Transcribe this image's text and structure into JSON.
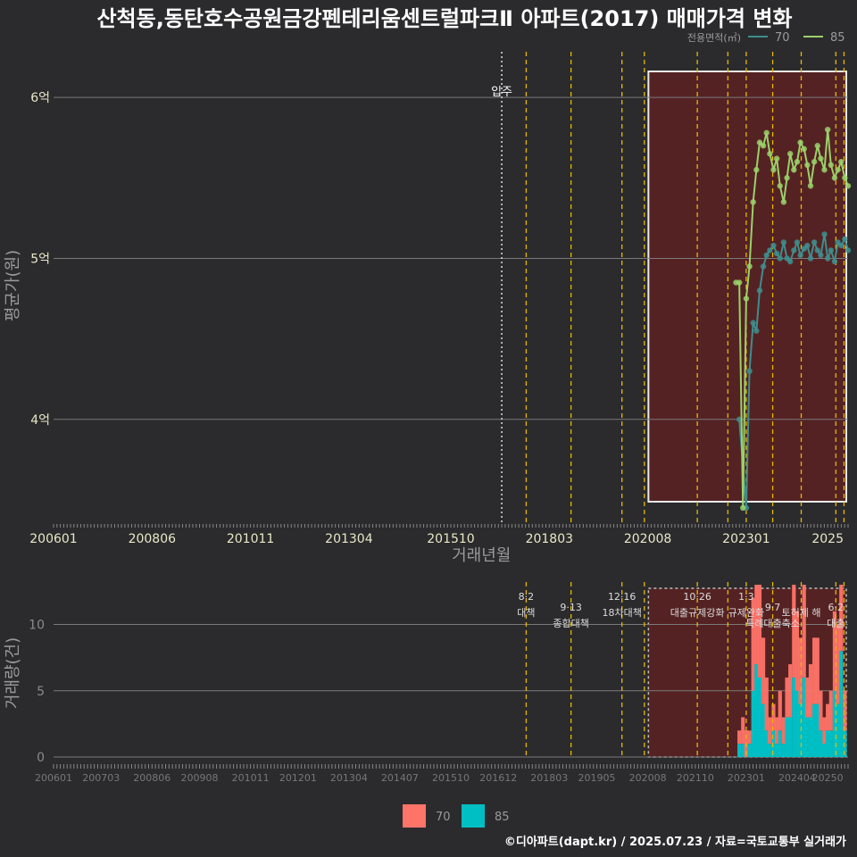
{
  "title": "산척동,동탄호수공원금강펜테리움센트럴파크Ⅱ 아파트(2017) 매매가격 변화",
  "footer": "©디아파트(dapt.kr) / 2025.07.23 / 자료=국토교통부 실거래가",
  "colors": {
    "background": "#2b2b2d",
    "area70": "#3e8e8e",
    "area85": "#9ad16a",
    "bar70": "#ff7469",
    "bar85": "#00bfc4",
    "policy": "#e6b800",
    "highlight": "#5a2222"
  },
  "chart_data": [
    {
      "type": "line",
      "name": "price",
      "xlabel": "거래년월",
      "ylabel": "평균가(원)",
      "ylim": [
        3.35,
        6.3
      ],
      "xlim": [
        2006.0,
        2025.5
      ],
      "x_ticks": [
        "200601",
        "200806",
        "201011",
        "201304",
        "201510",
        "201803",
        "202008",
        "202301",
        "2025"
      ],
      "y_ticks": [
        {
          "value": 4,
          "label": "4억"
        },
        {
          "value": 5,
          "label": "5억"
        },
        {
          "value": 6,
          "label": "6억"
        }
      ],
      "legend_title": "전용면적(㎡)",
      "legend_position": "top-right",
      "legend": [
        "70",
        "85"
      ],
      "occupancy": {
        "x": 2017.0,
        "label": "입주"
      },
      "highlight_range": [
        2020.6,
        2025.5
      ],
      "series": [
        {
          "name": "70",
          "x": [
            2022.83,
            2023.0,
            2023.08,
            2023.17,
            2023.25,
            2023.33,
            2023.42,
            2023.5,
            2023.58,
            2023.67,
            2023.75,
            2023.83,
            2023.92,
            2024.0,
            2024.08,
            2024.17,
            2024.25,
            2024.33,
            2024.42,
            2024.5,
            2024.58,
            2024.67,
            2024.75,
            2024.83,
            2024.92,
            2025.0,
            2025.08,
            2025.17,
            2025.25,
            2025.33,
            2025.42,
            2025.5
          ],
          "y": [
            4.0,
            3.45,
            4.3,
            4.6,
            4.55,
            4.8,
            4.95,
            5.02,
            5.05,
            5.08,
            5.03,
            5.0,
            5.1,
            5.0,
            4.98,
            5.05,
            5.1,
            5.02,
            5.06,
            5.08,
            5.0,
            5.1,
            5.05,
            5.02,
            5.15,
            5.0,
            5.05,
            4.98,
            5.1,
            5.08,
            5.12,
            5.05
          ]
        },
        {
          "name": "85",
          "x": [
            2022.75,
            2022.83,
            2022.92,
            2023.0,
            2023.08,
            2023.17,
            2023.25,
            2023.33,
            2023.42,
            2023.5,
            2023.58,
            2023.67,
            2023.75,
            2023.83,
            2023.92,
            2024.0,
            2024.08,
            2024.17,
            2024.25,
            2024.33,
            2024.42,
            2024.5,
            2024.58,
            2024.67,
            2024.75,
            2024.83,
            2024.92,
            2025.0,
            2025.08,
            2025.17,
            2025.25,
            2025.33,
            2025.42,
            2025.5
          ],
          "y": [
            4.85,
            4.85,
            3.45,
            4.75,
            4.95,
            5.35,
            5.55,
            5.72,
            5.7,
            5.78,
            5.65,
            5.55,
            5.62,
            5.45,
            5.35,
            5.5,
            5.65,
            5.55,
            5.6,
            5.72,
            5.68,
            5.58,
            5.45,
            5.6,
            5.7,
            5.62,
            5.55,
            5.8,
            5.58,
            5.5,
            5.55,
            5.6,
            5.5,
            5.45
          ]
        }
      ]
    },
    {
      "type": "bar",
      "name": "volume",
      "ylabel": "거래량(건)",
      "ylim": [
        0,
        13
      ],
      "xlim": [
        2006.0,
        2025.5
      ],
      "y_ticks": [
        0,
        5,
        10
      ],
      "x_ticks": [
        "200601",
        "200703",
        "200806",
        "200908",
        "201011",
        "201201",
        "201304",
        "201407",
        "201510",
        "201612",
        "201803",
        "201905",
        "202008",
        "202110",
        "202301",
        "202404",
        "20250"
      ],
      "highlight_range": [
        2020.6,
        2025.5
      ],
      "policies": [
        {
          "x": 2017.6,
          "date": "8·2",
          "label": "대책"
        },
        {
          "x": 2018.7,
          "date": "9·13",
          "label": "종합대책"
        },
        {
          "x": 2019.95,
          "date": "12·16",
          "label": "18차대책"
        },
        {
          "x": 2020.5,
          "date": "",
          "label": ""
        },
        {
          "x": 2021.8,
          "date": "10·26",
          "label": "대출규제강화"
        },
        {
          "x": 2022.55,
          "date": "",
          "label": ""
        },
        {
          "x": 2023.0,
          "date": "1·3",
          "label": "규제완화"
        },
        {
          "x": 2023.65,
          "date": "9·7",
          "label": "특례대출축소"
        },
        {
          "x": 2024.35,
          "date": "",
          "label": "토허제 해"
        },
        {
          "x": 2025.2,
          "date": "6·2",
          "label": "대출"
        },
        {
          "x": 2025.4,
          "date": "",
          "label": ""
        }
      ],
      "legend": [
        "70",
        "85"
      ],
      "series": [
        {
          "name": "70",
          "x": [
            2022.83,
            2022.92,
            2023.0,
            2023.08,
            2023.17,
            2023.25,
            2023.33,
            2023.42,
            2023.5,
            2023.58,
            2023.67,
            2023.75,
            2023.83,
            2023.92,
            2024.0,
            2024.08,
            2024.17,
            2024.25,
            2024.33,
            2024.42,
            2024.5,
            2024.58,
            2024.67,
            2024.75,
            2024.83,
            2024.92,
            2025.0,
            2025.08,
            2025.17,
            2025.25,
            2025.33,
            2025.42
          ],
          "y": [
            1,
            2,
            2,
            1,
            7,
            6,
            7,
            5,
            4,
            2,
            2,
            2,
            3,
            2,
            3,
            4,
            7,
            6,
            5,
            7,
            3,
            4,
            5,
            5,
            3,
            2,
            2,
            3,
            6,
            6,
            11,
            3
          ]
        },
        {
          "name": "85",
          "x": [
            2022.83,
            2022.92,
            2023.0,
            2023.08,
            2023.17,
            2023.25,
            2023.33,
            2023.42,
            2023.5,
            2023.58,
            2023.67,
            2023.75,
            2023.83,
            2023.92,
            2024.0,
            2024.08,
            2024.17,
            2024.25,
            2024.33,
            2024.42,
            2024.5,
            2024.58,
            2024.67,
            2024.75,
            2024.83,
            2024.92,
            2025.0,
            2025.08,
            2025.17,
            2025.25,
            2025.33,
            2025.42
          ],
          "y": [
            1,
            1,
            0,
            1,
            5,
            7,
            6,
            4,
            2,
            1,
            2,
            1,
            2,
            1,
            3,
            3,
            6,
            5,
            4,
            6,
            3,
            3,
            4,
            4,
            2,
            1,
            2,
            2,
            5,
            4,
            8,
            2
          ]
        }
      ]
    }
  ]
}
